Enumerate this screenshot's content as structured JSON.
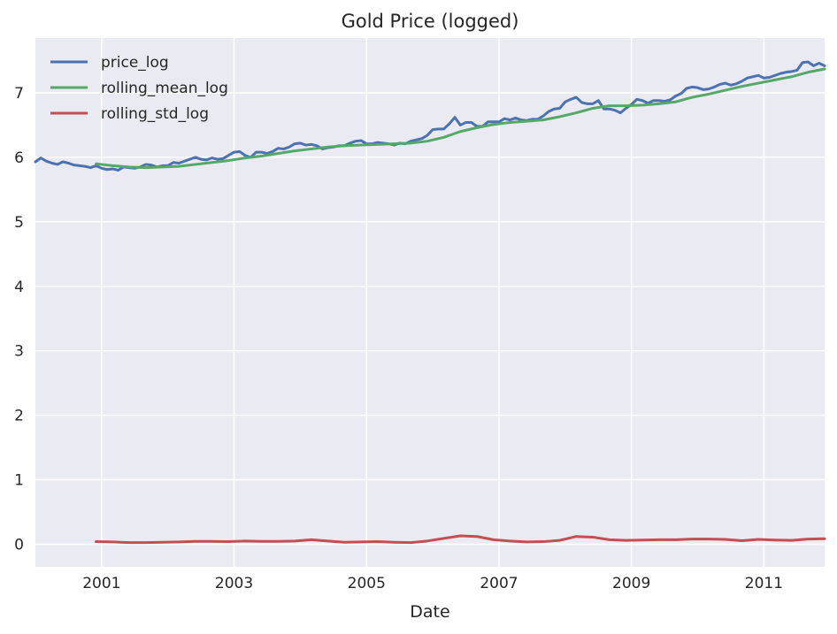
{
  "chart_data": {
    "type": "line",
    "title": "Gold Price (logged)",
    "xlabel": "Date",
    "ylabel": "",
    "x_range": [
      "2000-01",
      "2011-12"
    ],
    "ylim": [
      -0.35,
      7.85
    ],
    "x_ticks": [
      2001,
      2003,
      2005,
      2007,
      2009,
      2011
    ],
    "x_tick_labels": [
      "2001",
      "2003",
      "2005",
      "2007",
      "2009",
      "2011"
    ],
    "y_ticks": [
      0,
      1,
      2,
      3,
      4,
      5,
      6,
      7
    ],
    "y_tick_labels": [
      "0",
      "1",
      "2",
      "3",
      "4",
      "5",
      "6",
      "7"
    ],
    "grid": true,
    "legend_position": "top-left",
    "background_color": "#eaeaf2",
    "series": [
      {
        "name": "price_log",
        "color": "#4c72b0",
        "points": [
          [
            "2000-01",
            5.93
          ],
          [
            "2000-02",
            5.99
          ],
          [
            "2000-03",
            5.94
          ],
          [
            "2000-04",
            5.91
          ],
          [
            "2000-05",
            5.89
          ],
          [
            "2000-06",
            5.93
          ],
          [
            "2000-07",
            5.91
          ],
          [
            "2000-08",
            5.88
          ],
          [
            "2000-09",
            5.87
          ],
          [
            "2000-10",
            5.86
          ],
          [
            "2000-11",
            5.84
          ],
          [
            "2000-12",
            5.87
          ],
          [
            "2001-01",
            5.83
          ],
          [
            "2001-02",
            5.81
          ],
          [
            "2001-03",
            5.82
          ],
          [
            "2001-04",
            5.8
          ],
          [
            "2001-05",
            5.85
          ],
          [
            "2001-06",
            5.84
          ],
          [
            "2001-07",
            5.83
          ],
          [
            "2001-08",
            5.85
          ],
          [
            "2001-09",
            5.89
          ],
          [
            "2001-10",
            5.88
          ],
          [
            "2001-11",
            5.85
          ],
          [
            "2001-12",
            5.87
          ],
          [
            "2002-01",
            5.87
          ],
          [
            "2002-02",
            5.92
          ],
          [
            "2002-03",
            5.91
          ],
          [
            "2002-04",
            5.94
          ],
          [
            "2002-05",
            5.97
          ],
          [
            "2002-06",
            6.0
          ],
          [
            "2002-07",
            5.97
          ],
          [
            "2002-08",
            5.96
          ],
          [
            "2002-09",
            5.99
          ],
          [
            "2002-10",
            5.97
          ],
          [
            "2002-11",
            5.98
          ],
          [
            "2002-12",
            6.03
          ],
          [
            "2003-01",
            6.08
          ],
          [
            "2003-02",
            6.09
          ],
          [
            "2003-03",
            6.03
          ],
          [
            "2003-04",
            6.0
          ],
          [
            "2003-05",
            6.08
          ],
          [
            "2003-06",
            6.08
          ],
          [
            "2003-07",
            6.06
          ],
          [
            "2003-08",
            6.09
          ],
          [
            "2003-09",
            6.14
          ],
          [
            "2003-10",
            6.13
          ],
          [
            "2003-11",
            6.16
          ],
          [
            "2003-12",
            6.21
          ],
          [
            "2004-01",
            6.22
          ],
          [
            "2004-02",
            6.19
          ],
          [
            "2004-03",
            6.2
          ],
          [
            "2004-04",
            6.18
          ],
          [
            "2004-05",
            6.13
          ],
          [
            "2004-06",
            6.15
          ],
          [
            "2004-07",
            6.16
          ],
          [
            "2004-08",
            6.18
          ],
          [
            "2004-09",
            6.18
          ],
          [
            "2004-10",
            6.22
          ],
          [
            "2004-11",
            6.25
          ],
          [
            "2004-12",
            6.26
          ],
          [
            "2005-01",
            6.21
          ],
          [
            "2005-02",
            6.21
          ],
          [
            "2005-03",
            6.23
          ],
          [
            "2005-04",
            6.22
          ],
          [
            "2005-05",
            6.21
          ],
          [
            "2005-06",
            6.19
          ],
          [
            "2005-07",
            6.22
          ],
          [
            "2005-08",
            6.21
          ],
          [
            "2005-09",
            6.25
          ],
          [
            "2005-10",
            6.27
          ],
          [
            "2005-11",
            6.29
          ],
          [
            "2005-12",
            6.34
          ],
          [
            "2006-01",
            6.43
          ],
          [
            "2006-02",
            6.44
          ],
          [
            "2006-03",
            6.44
          ],
          [
            "2006-04",
            6.52
          ],
          [
            "2006-05",
            6.62
          ],
          [
            "2006-06",
            6.5
          ],
          [
            "2006-07",
            6.54
          ],
          [
            "2006-08",
            6.54
          ],
          [
            "2006-09",
            6.48
          ],
          [
            "2006-10",
            6.48
          ],
          [
            "2006-11",
            6.55
          ],
          [
            "2006-12",
            6.55
          ],
          [
            "2007-01",
            6.55
          ],
          [
            "2007-02",
            6.6
          ],
          [
            "2007-03",
            6.58
          ],
          [
            "2007-04",
            6.61
          ],
          [
            "2007-05",
            6.58
          ],
          [
            "2007-06",
            6.57
          ],
          [
            "2007-07",
            6.59
          ],
          [
            "2007-08",
            6.59
          ],
          [
            "2007-09",
            6.64
          ],
          [
            "2007-10",
            6.71
          ],
          [
            "2007-11",
            6.75
          ],
          [
            "2007-12",
            6.76
          ],
          [
            "2008-01",
            6.86
          ],
          [
            "2008-02",
            6.9
          ],
          [
            "2008-03",
            6.93
          ],
          [
            "2008-04",
            6.85
          ],
          [
            "2008-05",
            6.83
          ],
          [
            "2008-06",
            6.83
          ],
          [
            "2008-07",
            6.88
          ],
          [
            "2008-08",
            6.75
          ],
          [
            "2008-09",
            6.75
          ],
          [
            "2008-10",
            6.73
          ],
          [
            "2008-11",
            6.69
          ],
          [
            "2008-12",
            6.76
          ],
          [
            "2009-01",
            6.82
          ],
          [
            "2009-02",
            6.9
          ],
          [
            "2009-03",
            6.88
          ],
          [
            "2009-04",
            6.84
          ],
          [
            "2009-05",
            6.88
          ],
          [
            "2009-06",
            6.88
          ],
          [
            "2009-07",
            6.87
          ],
          [
            "2009-08",
            6.89
          ],
          [
            "2009-09",
            6.95
          ],
          [
            "2009-10",
            6.99
          ],
          [
            "2009-11",
            7.07
          ],
          [
            "2009-12",
            7.09
          ],
          [
            "2010-01",
            7.08
          ],
          [
            "2010-02",
            7.05
          ],
          [
            "2010-03",
            7.06
          ],
          [
            "2010-04",
            7.09
          ],
          [
            "2010-05",
            7.13
          ],
          [
            "2010-06",
            7.15
          ],
          [
            "2010-07",
            7.12
          ],
          [
            "2010-08",
            7.14
          ],
          [
            "2010-09",
            7.18
          ],
          [
            "2010-10",
            7.23
          ],
          [
            "2010-11",
            7.25
          ],
          [
            "2010-12",
            7.27
          ],
          [
            "2011-01",
            7.23
          ],
          [
            "2011-02",
            7.24
          ],
          [
            "2011-03",
            7.27
          ],
          [
            "2011-04",
            7.3
          ],
          [
            "2011-05",
            7.32
          ],
          [
            "2011-06",
            7.33
          ],
          [
            "2011-07",
            7.35
          ],
          [
            "2011-08",
            7.47
          ],
          [
            "2011-09",
            7.48
          ],
          [
            "2011-10",
            7.42
          ],
          [
            "2011-11",
            7.46
          ],
          [
            "2011-12",
            7.42
          ]
        ]
      },
      {
        "name": "rolling_mean_log",
        "color": "#55a868",
        "points": [
          [
            "2000-12",
            5.9
          ],
          [
            "2001-01",
            5.89
          ],
          [
            "2001-03",
            5.87
          ],
          [
            "2001-06",
            5.85
          ],
          [
            "2001-09",
            5.84
          ],
          [
            "2001-12",
            5.85
          ],
          [
            "2002-03",
            5.86
          ],
          [
            "2002-06",
            5.89
          ],
          [
            "2002-09",
            5.92
          ],
          [
            "2002-12",
            5.95
          ],
          [
            "2003-03",
            5.99
          ],
          [
            "2003-06",
            6.02
          ],
          [
            "2003-09",
            6.06
          ],
          [
            "2003-12",
            6.1
          ],
          [
            "2004-03",
            6.13
          ],
          [
            "2004-06",
            6.16
          ],
          [
            "2004-09",
            6.18
          ],
          [
            "2004-12",
            6.19
          ],
          [
            "2005-03",
            6.2
          ],
          [
            "2005-06",
            6.21
          ],
          [
            "2005-09",
            6.22
          ],
          [
            "2005-12",
            6.25
          ],
          [
            "2006-03",
            6.31
          ],
          [
            "2006-06",
            6.4
          ],
          [
            "2006-09",
            6.46
          ],
          [
            "2006-12",
            6.51
          ],
          [
            "2007-03",
            6.54
          ],
          [
            "2007-06",
            6.56
          ],
          [
            "2007-09",
            6.58
          ],
          [
            "2007-12",
            6.63
          ],
          [
            "2008-03",
            6.69
          ],
          [
            "2008-06",
            6.76
          ],
          [
            "2008-09",
            6.8
          ],
          [
            "2008-12",
            6.8
          ],
          [
            "2009-03",
            6.81
          ],
          [
            "2009-06",
            6.83
          ],
          [
            "2009-09",
            6.86
          ],
          [
            "2009-12",
            6.93
          ],
          [
            "2010-03",
            6.98
          ],
          [
            "2010-06",
            7.04
          ],
          [
            "2010-09",
            7.1
          ],
          [
            "2010-12",
            7.15
          ],
          [
            "2011-03",
            7.2
          ],
          [
            "2011-06",
            7.25
          ],
          [
            "2011-09",
            7.32
          ],
          [
            "2011-12",
            7.37
          ]
        ]
      },
      {
        "name": "rolling_std_log",
        "color": "#c44e52",
        "points": [
          [
            "2000-12",
            0.04
          ],
          [
            "2001-03",
            0.035
          ],
          [
            "2001-06",
            0.025
          ],
          [
            "2001-09",
            0.025
          ],
          [
            "2001-12",
            0.03
          ],
          [
            "2002-03",
            0.035
          ],
          [
            "2002-06",
            0.045
          ],
          [
            "2002-09",
            0.045
          ],
          [
            "2002-12",
            0.04
          ],
          [
            "2003-03",
            0.05
          ],
          [
            "2003-06",
            0.045
          ],
          [
            "2003-09",
            0.045
          ],
          [
            "2003-12",
            0.05
          ],
          [
            "2004-03",
            0.07
          ],
          [
            "2004-06",
            0.05
          ],
          [
            "2004-09",
            0.03
          ],
          [
            "2004-12",
            0.035
          ],
          [
            "2005-03",
            0.04
          ],
          [
            "2005-06",
            0.03
          ],
          [
            "2005-09",
            0.025
          ],
          [
            "2005-12",
            0.05
          ],
          [
            "2006-03",
            0.09
          ],
          [
            "2006-06",
            0.13
          ],
          [
            "2006-09",
            0.12
          ],
          [
            "2006-12",
            0.07
          ],
          [
            "2007-03",
            0.05
          ],
          [
            "2007-06",
            0.035
          ],
          [
            "2007-09",
            0.04
          ],
          [
            "2007-12",
            0.06
          ],
          [
            "2008-03",
            0.12
          ],
          [
            "2008-06",
            0.11
          ],
          [
            "2008-09",
            0.07
          ],
          [
            "2008-12",
            0.06
          ],
          [
            "2009-03",
            0.065
          ],
          [
            "2009-06",
            0.07
          ],
          [
            "2009-09",
            0.07
          ],
          [
            "2009-12",
            0.08
          ],
          [
            "2010-03",
            0.08
          ],
          [
            "2010-06",
            0.075
          ],
          [
            "2010-09",
            0.055
          ],
          [
            "2010-12",
            0.075
          ],
          [
            "2011-03",
            0.065
          ],
          [
            "2011-06",
            0.06
          ],
          [
            "2011-09",
            0.08
          ],
          [
            "2011-12",
            0.085
          ]
        ]
      }
    ]
  }
}
